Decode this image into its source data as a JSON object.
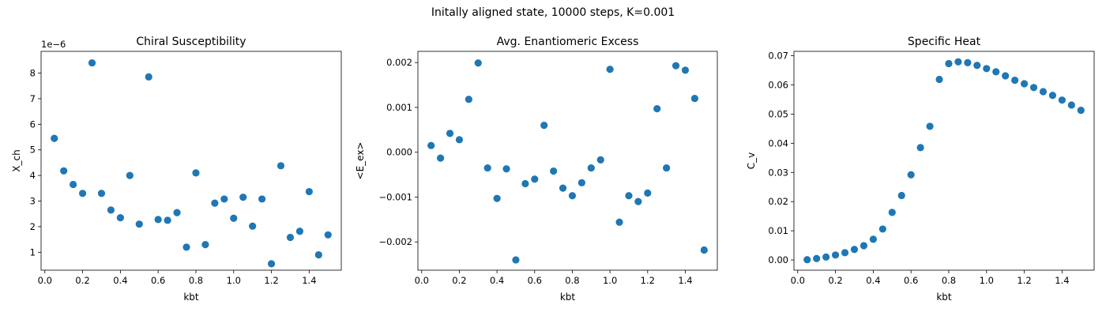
{
  "figure": {
    "suptitle": "Initally aligned state, 10000 steps, K=0.001"
  },
  "chart_data": [
    {
      "type": "scatter",
      "title": "Chiral Susceptibility",
      "xlabel": "kbt",
      "ylabel": "X_ch",
      "offset_label": "1e−6",
      "color": "#1f77b4",
      "xlim": [
        -0.02,
        1.57
      ],
      "ylim": [
        0.3,
        8.85
      ],
      "xticks": [
        0.0,
        0.2,
        0.4,
        0.6,
        0.8,
        1.0,
        1.2,
        1.4
      ],
      "xtick_labels": [
        "0.0",
        "0.2",
        "0.4",
        "0.6",
        "0.8",
        "1.0",
        "1.2",
        "1.4"
      ],
      "yticks": [
        1,
        2,
        3,
        4,
        5,
        6,
        7,
        8
      ],
      "ytick_labels": [
        "1",
        "2",
        "3",
        "4",
        "5",
        "6",
        "7",
        "8"
      ],
      "x": [
        0.05,
        0.1,
        0.15,
        0.2,
        0.25,
        0.3,
        0.35,
        0.4,
        0.45,
        0.5,
        0.55,
        0.6,
        0.65,
        0.7,
        0.75,
        0.8,
        0.85,
        0.9,
        0.95,
        1.0,
        1.05,
        1.1,
        1.15,
        1.2,
        1.25,
        1.3,
        1.35,
        1.4,
        1.45,
        1.5
      ],
      "y": [
        5.45,
        4.18,
        3.65,
        3.3,
        8.4,
        3.3,
        2.65,
        2.35,
        4.0,
        2.1,
        7.85,
        2.28,
        2.25,
        2.55,
        1.2,
        4.1,
        1.3,
        2.92,
        3.08,
        2.33,
        3.15,
        2.02,
        3.08,
        0.55,
        4.38,
        1.58,
        1.82,
        3.37,
        0.9,
        1.68
      ]
    },
    {
      "type": "scatter",
      "title": "Avg. Enantiomeric Excess",
      "xlabel": "kbt",
      "ylabel": "<E_ex>",
      "color": "#1f77b4",
      "xlim": [
        -0.02,
        1.57
      ],
      "ylim": [
        -0.00263,
        0.00225
      ],
      "xticks": [
        0.0,
        0.2,
        0.4,
        0.6,
        0.8,
        1.0,
        1.2,
        1.4
      ],
      "xtick_labels": [
        "0.0",
        "0.2",
        "0.4",
        "0.6",
        "0.8",
        "1.0",
        "1.2",
        "1.4"
      ],
      "yticks": [
        -0.002,
        -0.001,
        0.0,
        0.001,
        0.002
      ],
      "ytick_labels": [
        "−0.002",
        "−0.001",
        "0.000",
        "0.001",
        "0.002"
      ],
      "x": [
        0.05,
        0.1,
        0.15,
        0.2,
        0.25,
        0.3,
        0.35,
        0.4,
        0.45,
        0.5,
        0.55,
        0.6,
        0.65,
        0.7,
        0.75,
        0.8,
        0.85,
        0.9,
        0.95,
        1.0,
        1.05,
        1.1,
        1.15,
        1.2,
        1.25,
        1.3,
        1.35,
        1.4,
        1.45,
        1.5
      ],
      "y": [
        0.00015,
        -0.00013,
        0.00042,
        0.00028,
        0.00118,
        0.00199,
        -0.00035,
        -0.00103,
        -0.00037,
        -0.0024,
        -0.0007,
        -0.0006,
        0.0006,
        -0.00042,
        -0.0008,
        -0.00097,
        -0.00068,
        -0.00035,
        -0.00017,
        0.00185,
        -0.00156,
        -0.00097,
        -0.0011,
        -0.00091,
        0.00097,
        -0.00035,
        0.00193,
        0.00183,
        0.0012,
        -0.00218
      ]
    },
    {
      "type": "scatter",
      "title": "Specific Heat",
      "xlabel": "kbt",
      "ylabel": "C_v",
      "color": "#1f77b4",
      "xlim": [
        -0.02,
        1.57
      ],
      "ylim": [
        -0.0035,
        0.0715
      ],
      "xticks": [
        0.0,
        0.2,
        0.4,
        0.6,
        0.8,
        1.0,
        1.2,
        1.4
      ],
      "xtick_labels": [
        "0.0",
        "0.2",
        "0.4",
        "0.6",
        "0.8",
        "1.0",
        "1.2",
        "1.4"
      ],
      "yticks": [
        0.0,
        0.01,
        0.02,
        0.03,
        0.04,
        0.05,
        0.06,
        0.07
      ],
      "ytick_labels": [
        "0.00",
        "0.01",
        "0.02",
        "0.03",
        "0.04",
        "0.05",
        "0.06",
        "0.07"
      ],
      "x": [
        0.05,
        0.1,
        0.15,
        0.2,
        0.25,
        0.3,
        0.35,
        0.4,
        0.45,
        0.5,
        0.55,
        0.6,
        0.65,
        0.7,
        0.75,
        0.8,
        0.85,
        0.9,
        0.95,
        1.0,
        1.05,
        1.1,
        1.15,
        1.2,
        1.25,
        1.3,
        1.35,
        1.4,
        1.45,
        1.5
      ],
      "y": [
        0.0001,
        0.0005,
        0.001,
        0.0017,
        0.0025,
        0.0036,
        0.0049,
        0.0071,
        0.0106,
        0.0163,
        0.0221,
        0.0292,
        0.0385,
        0.0458,
        0.0619,
        0.0673,
        0.0679,
        0.0676,
        0.0667,
        0.0656,
        0.0645,
        0.0631,
        0.0616,
        0.0604,
        0.0591,
        0.0577,
        0.0564,
        0.0548,
        0.0531,
        0.0513
      ]
    }
  ]
}
